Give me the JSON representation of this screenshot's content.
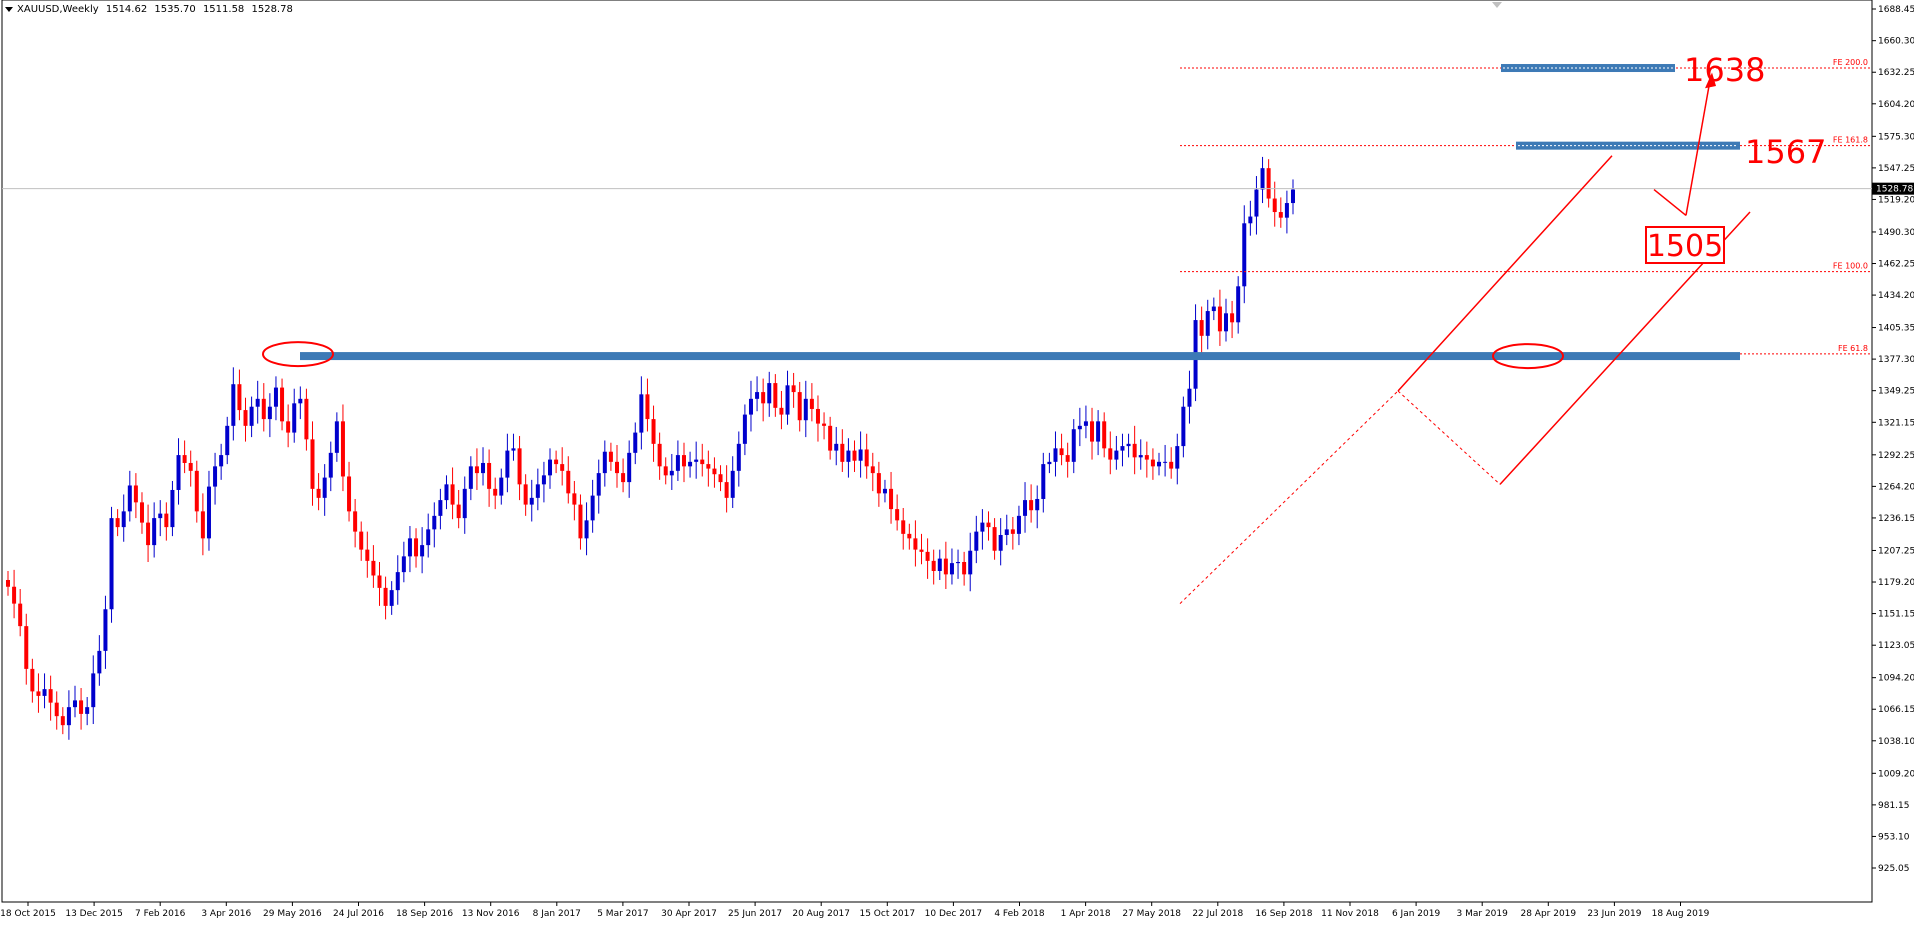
{
  "header": {
    "symbol": "XAUUSD,Weekly",
    "open": "1514.62",
    "high": "1535.70",
    "low": "1511.58",
    "close": "1528.78"
  },
  "chart_data": {
    "type": "candlestick",
    "symbol": "XAUUSD",
    "timeframe": "Weekly",
    "ylim": [
      925.05,
      1688.45
    ],
    "y_ticks": [
      "1688.45",
      "1660.30",
      "1632.25",
      "1604.20",
      "1575.30",
      "1547.25",
      "1519.20",
      "1490.30",
      "1462.25",
      "1434.20",
      "1405.35",
      "1377.30",
      "1349.25",
      "1321.15",
      "1292.25",
      "1264.20",
      "1236.15",
      "1207.25",
      "1179.20",
      "1151.15",
      "1123.05",
      "1094.20",
      "1066.15",
      "1038.10",
      "1009.20",
      "981.15",
      "953.10",
      "925.05"
    ],
    "x_ticks": [
      "18 Oct 2015",
      "13 Dec 2015",
      "7 Feb 2016",
      "3 Apr 2016",
      "29 May 2016",
      "24 Jul 2016",
      "18 Sep 2016",
      "13 Nov 2016",
      "8 Jan 2017",
      "5 Mar 2017",
      "30 Apr 2017",
      "25 Jun 2017",
      "20 Aug 2017",
      "15 Oct 2017",
      "10 Dec 2017",
      "4 Feb 2018",
      "1 Apr 2018",
      "27 May 2018",
      "22 Jul 2018",
      "16 Sep 2018",
      "11 Nov 2018",
      "6 Jan 2019",
      "3 Mar 2019",
      "28 Apr 2019",
      "23 Jun 2019",
      "18 Aug 2019"
    ],
    "current_price": "1528.78",
    "colors": {
      "bull": "#0000cc",
      "bear": "#ff0000",
      "zone": "#3d7ab6",
      "annotation": "#ff0000"
    },
    "closes": [
      1175,
      1160,
      1140,
      1102,
      1082,
      1078,
      1084,
      1072,
      1060,
      1052,
      1068,
      1074,
      1062,
      1068,
      1098,
      1118,
      1155,
      1236,
      1228,
      1242,
      1265,
      1250,
      1232,
      1212,
      1236,
      1240,
      1228,
      1261,
      1292,
      1285,
      1278,
      1242,
      1218,
      1264,
      1282,
      1292,
      1318,
      1355,
      1332,
      1318,
      1335,
      1342,
      1324,
      1335,
      1352,
      1322,
      1312,
      1338,
      1342,
      1306,
      1262,
      1254,
      1272,
      1294,
      1322,
      1273,
      1242,
      1224,
      1208,
      1198,
      1185,
      1174,
      1158,
      1172,
      1188,
      1202,
      1218,
      1202,
      1212,
      1226,
      1238,
      1252,
      1266,
      1248,
      1236,
      1262,
      1282,
      1276,
      1285,
      1262,
      1256,
      1272,
      1296,
      1298,
      1266,
      1248,
      1254,
      1266,
      1274,
      1288,
      1284,
      1278,
      1258,
      1248,
      1218,
      1234,
      1256,
      1276,
      1295,
      1286,
      1276,
      1268,
      1294,
      1312,
      1346,
      1324,
      1302,
      1282,
      1274,
      1278,
      1292,
      1282,
      1286,
      1288,
      1284,
      1280,
      1275,
      1268,
      1254,
      1278,
      1302,
      1328,
      1342,
      1348,
      1338,
      1356,
      1334,
      1328,
      1354,
      1348,
      1323,
      1342,
      1333,
      1320,
      1318,
      1296,
      1302,
      1286,
      1296,
      1287,
      1297,
      1282,
      1276,
      1258,
      1262,
      1244,
      1234,
      1222,
      1218,
      1208,
      1206,
      1198,
      1189,
      1200,
      1186,
      1196,
      1197,
      1186,
      1207,
      1224,
      1232,
      1228,
      1207,
      1221,
      1226,
      1222,
      1238,
      1252,
      1243,
      1253,
      1284,
      1286,
      1298,
      1292,
      1286,
      1315,
      1318,
      1322,
      1304,
      1322,
      1298,
      1288,
      1296,
      1300,
      1302,
      1290,
      1292,
      1288,
      1282,
      1286,
      1286,
      1280,
      1300,
      1335,
      1351,
      1412,
      1398,
      1420,
      1424,
      1402,
      1418,
      1410,
      1442,
      1498,
      1504,
      1528,
      1547,
      1520,
      1508,
      1503,
      1516,
      1528
    ],
    "annotations": {
      "fib_levels": [
        {
          "label": "FE 200.0",
          "value": 1636
        },
        {
          "label": "FE 161.8",
          "value": 1567
        },
        {
          "label": "FE 100.0",
          "value": 1455
        },
        {
          "label": "FE 61.8",
          "value": 1382
        }
      ],
      "callouts": [
        "1638",
        "1567",
        "1505"
      ],
      "resistance_zone": 1380
    }
  }
}
